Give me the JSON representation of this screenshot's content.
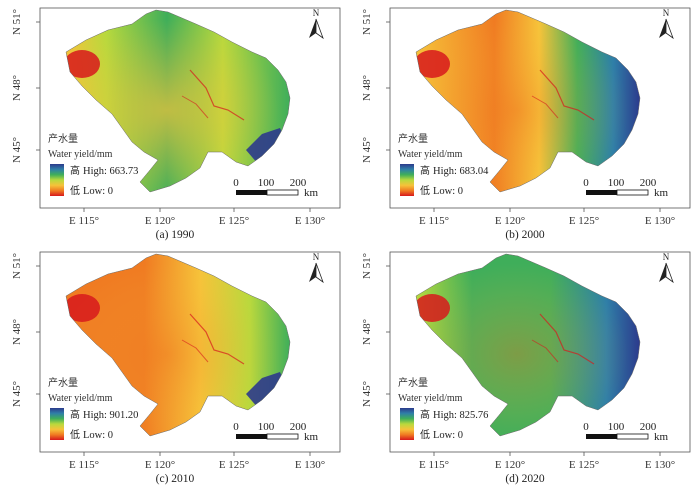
{
  "figure": {
    "legend_title_cn": "产水量",
    "legend_title_en": "Water yield/mm",
    "high_cjk": "高",
    "low_cjk": "低",
    "low_label": "Low: 0",
    "north_label": "N",
    "lat_labels": [
      "N 51°",
      "N 48°",
      "N 45°"
    ],
    "lon_labels": [
      "E 115°",
      "E 120°",
      "E 125°",
      "E 130°"
    ],
    "scale_values": [
      "0",
      "100",
      "200"
    ],
    "scale_unit": "km",
    "color_ramp": [
      "#d7191c",
      "#f07b22",
      "#f6c33a",
      "#b8d93d",
      "#3fae5a",
      "#2f7fa8",
      "#2c3a8c"
    ],
    "panels": [
      {
        "caption": "(a) 1990",
        "high_label": "High: 663.73",
        "dominant": "green"
      },
      {
        "caption": "(b) 2000",
        "high_label": "High: 683.04",
        "dominant": "orange"
      },
      {
        "caption": "(c) 2010",
        "high_label": "High: 901.20",
        "dominant": "orange"
      },
      {
        "caption": "(d) 2020",
        "high_label": "High: 825.76",
        "dominant": "green"
      }
    ]
  }
}
